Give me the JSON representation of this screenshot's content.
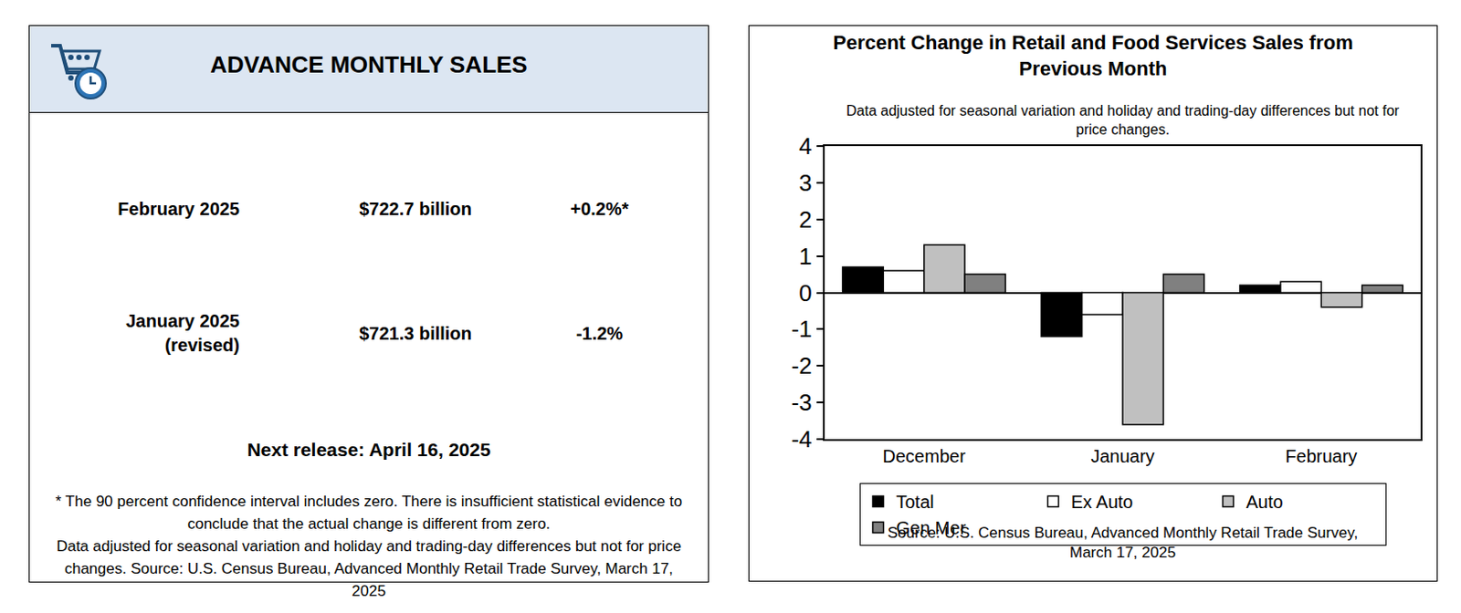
{
  "summary": {
    "title": "ADVANCE MONTHLY SALES",
    "rows": [
      {
        "period": [
          "February 2025"
        ],
        "value": "$722.7 billion",
        "change": "+0.2%*"
      },
      {
        "period": [
          "January 2025",
          "(revised)"
        ],
        "value": "$721.3 billion",
        "change": "-1.2%"
      }
    ],
    "next_release": "Next release: April 16, 2025",
    "footnote": "* The 90 percent confidence interval includes zero. There is insufficient statistical evidence to conclude that the actual change is different from zero.",
    "note": "Data adjusted for seasonal variation and holiday and trading-day differences but not for price changes. Source: U.S. Census Bureau, Advanced Monthly Retail Trade Survey, March 17, 2025"
  },
  "chart_data": {
    "type": "bar",
    "title": "Percent Change in Retail and Food Services Sales from Previous Month",
    "subtitle": "Data adjusted for seasonal variation and holiday and trading-day differences but not for price changes.",
    "source": "Source: U.S. Census Bureau, Advanced Monthly Retail Trade Survey, March 17, 2025",
    "categories": [
      "December",
      "January",
      "February"
    ],
    "series": [
      {
        "name": "Total",
        "color": "#000000",
        "values": [
          0.7,
          -1.2,
          0.2
        ]
      },
      {
        "name": "Ex Auto",
        "color": "#ffffff",
        "values": [
          0.6,
          -0.6,
          0.3
        ]
      },
      {
        "name": "Auto",
        "color": "#c0c0c0",
        "values": [
          1.3,
          -3.6,
          -0.4
        ]
      },
      {
        "name": "Gen Mer",
        "color": "#808080",
        "values": [
          0.5,
          0.5,
          0.2
        ]
      }
    ],
    "ylim": [
      -4,
      4
    ],
    "yticks": [
      -4,
      -3,
      -2,
      -1,
      0,
      1,
      2,
      3,
      4
    ],
    "grid": false,
    "legend": "bottom"
  }
}
